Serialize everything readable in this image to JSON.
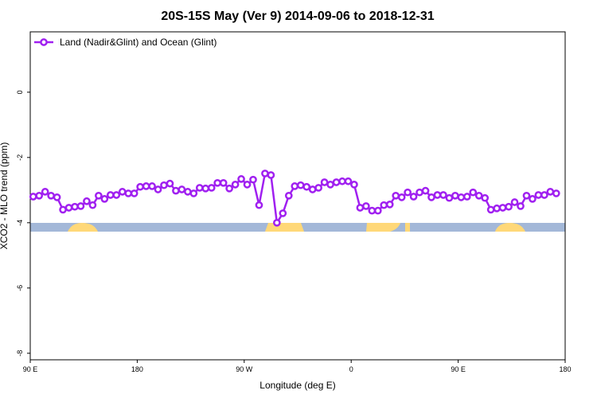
{
  "chart_data": {
    "type": "line",
    "title": "20S-15S May (Ver 9)   2014-09-06 to 2018-12-31",
    "x_label": "Longitude (deg E)",
    "y_label": "XCO2 - MLO trend (ppm)",
    "legend": "top-left",
    "xlim": [
      90,
      540
    ],
    "ylim": [
      -8.2,
      1.85
    ],
    "xticks": [
      {
        "value": 90,
        "label": "90 E"
      },
      180,
      {
        "value": 270,
        "label": "90 W"
      },
      {
        "value": 360,
        "label": "0"
      },
      {
        "value": 450,
        "label": "90 E"
      },
      {
        "value": 540,
        "label": "180"
      }
    ],
    "yticks": [
      0,
      -2,
      -4,
      -6,
      -8
    ],
    "series": [
      {
        "name": "Land (Nadir&Glint) and Ocean (Glint)",
        "color": "#a020f0",
        "x": [
          92.5,
          97.5,
          102.5,
          107.5,
          112.5,
          117.5,
          122.5,
          127.5,
          132.5,
          137.5,
          142.5,
          147.5,
          152.5,
          157.5,
          162.5,
          167.5,
          172.5,
          177.5,
          182.5,
          187.5,
          192.5,
          197.5,
          202.5,
          207.5,
          212.5,
          217.5,
          222.5,
          227.5,
          232.5,
          237.5,
          242.5,
          247.5,
          252.5,
          257.5,
          262.5,
          267.5,
          272.5,
          277.5,
          282.5,
          287.5,
          292.5,
          297.5,
          302.5,
          307.5,
          312.5,
          317.5,
          322.5,
          327.5,
          332.5,
          337.5,
          342.5,
          347.5,
          352.5,
          357.5,
          362.5,
          367.5,
          372.5,
          377.5,
          382.5,
          387.5,
          392.5,
          397.5,
          402.5,
          407.5,
          412.5,
          417.5,
          422.5,
          427.5,
          432.5,
          437.5,
          442.5,
          447.5,
          452.5,
          457.5,
          462.5,
          467.5,
          472.5,
          477.5,
          482.5,
          487.5,
          492.5,
          497.5,
          502.5,
          507.5,
          512.5,
          517.5,
          522.5,
          527.5,
          532.5
        ],
        "values": [
          -3.2,
          -3.17,
          -3.05,
          -3.17,
          -3.22,
          -3.6,
          -3.54,
          -3.51,
          -3.49,
          -3.34,
          -3.46,
          -3.17,
          -3.27,
          -3.15,
          -3.15,
          -3.05,
          -3.1,
          -3.1,
          -2.9,
          -2.88,
          -2.88,
          -2.98,
          -2.85,
          -2.8,
          -3.02,
          -2.98,
          -3.05,
          -3.1,
          -2.93,
          -2.95,
          -2.93,
          -2.78,
          -2.78,
          -2.95,
          -2.83,
          -2.66,
          -2.83,
          -2.68,
          -3.46,
          -2.49,
          -2.54,
          -4.0,
          -3.71,
          -3.17,
          -2.88,
          -2.85,
          -2.9,
          -2.98,
          -2.93,
          -2.76,
          -2.83,
          -2.76,
          -2.73,
          -2.73,
          -2.83,
          -3.54,
          -3.49,
          -3.63,
          -3.63,
          -3.46,
          -3.44,
          -3.17,
          -3.22,
          -3.07,
          -3.2,
          -3.07,
          -3.02,
          -3.22,
          -3.15,
          -3.15,
          -3.24,
          -3.17,
          -3.22,
          -3.2,
          -3.07,
          -3.17,
          -3.24,
          -3.6,
          -3.56,
          -3.54,
          -3.51,
          -3.37,
          -3.49,
          -3.17,
          -3.27,
          -3.15,
          -3.15,
          -3.05,
          -3.1
        ]
      }
    ]
  }
}
